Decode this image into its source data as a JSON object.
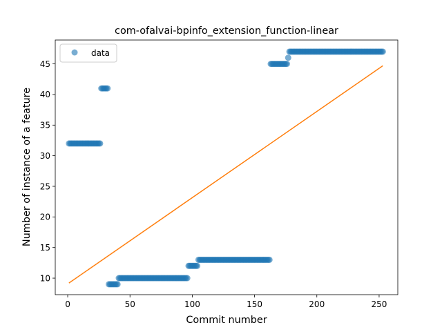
{
  "chart_data": {
    "type": "scatter",
    "title": "com-ofalvai-bpinfo_extension_function-linear",
    "xlabel": "Commit number",
    "ylabel": "Number of instance of a feature",
    "xlim": [
      -10,
      265
    ],
    "ylim": [
      7.3,
      48.9
    ],
    "xticks": [
      0,
      50,
      100,
      150,
      200,
      250
    ],
    "yticks": [
      10,
      15,
      20,
      25,
      30,
      35,
      40,
      45
    ],
    "legend": {
      "position": "top-left",
      "label": "data"
    },
    "colors": {
      "data": "#1f77b4",
      "fit": "#ff7f0e"
    },
    "series": [
      {
        "name": "data",
        "kind": "points",
        "segments": [
          {
            "x_start": 1,
            "x_end": 26,
            "y": 32
          },
          {
            "x_start": 27,
            "x_end": 32,
            "y": 41
          },
          {
            "x_start": 33,
            "x_end": 40,
            "y": 9
          },
          {
            "x_start": 41,
            "x_end": 96,
            "y": 10
          },
          {
            "x_start": 97,
            "x_end": 104,
            "y": 12
          },
          {
            "x_start": 105,
            "x_end": 162,
            "y": 13
          },
          {
            "x_start": 163,
            "x_end": 176,
            "y": 45
          },
          {
            "x_start": 177,
            "x_end": 177,
            "y": 46
          },
          {
            "x_start": 178,
            "x_end": 253,
            "y": 47
          }
        ]
      },
      {
        "name": "",
        "kind": "line",
        "points": [
          [
            1,
            9.2
          ],
          [
            253,
            44.7
          ]
        ]
      }
    ]
  }
}
